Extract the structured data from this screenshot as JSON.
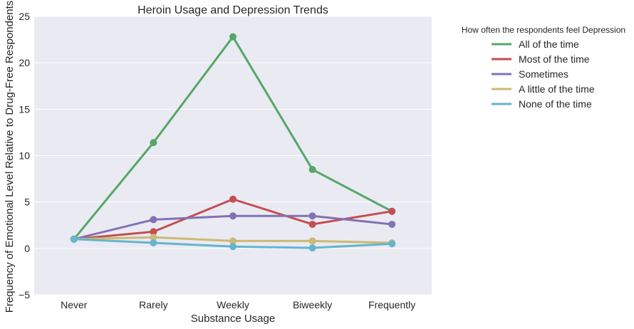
{
  "chart_data": {
    "type": "line",
    "title": "Heroin Usage and Depression Trends",
    "xlabel": "Substance Usage",
    "ylabel": "Frequency of Emotional Level Relative to Drug-Free Respondents",
    "categories": [
      "Never",
      "Rarely",
      "Weekly",
      "Biweekly",
      "Frequently"
    ],
    "ylim": [
      -5,
      25
    ],
    "yticks": [
      "−5",
      "0",
      "5",
      "10",
      "15",
      "20",
      "25"
    ],
    "ytick_values": [
      -5,
      0,
      5,
      10,
      15,
      20,
      25
    ],
    "grid": true,
    "legend_title": "How often the respondents feel Depression",
    "legend_position": "outside-right",
    "series": [
      {
        "name": "All of the time",
        "color": "#55a868",
        "values": [
          1.0,
          11.4,
          22.8,
          8.5,
          4.0
        ]
      },
      {
        "name": "Most of the time",
        "color": "#c44e52",
        "values": [
          1.0,
          1.8,
          5.3,
          2.6,
          4.0
        ]
      },
      {
        "name": "Sometimes",
        "color": "#8172b2",
        "values": [
          1.0,
          3.1,
          3.5,
          3.5,
          2.6
        ]
      },
      {
        "name": "A little of the time",
        "color": "#ccb974",
        "values": [
          1.0,
          1.2,
          0.8,
          0.8,
          0.6
        ]
      },
      {
        "name": "None of the time",
        "color": "#64b5cd",
        "values": [
          1.0,
          0.6,
          0.2,
          0.05,
          0.5
        ]
      }
    ]
  }
}
